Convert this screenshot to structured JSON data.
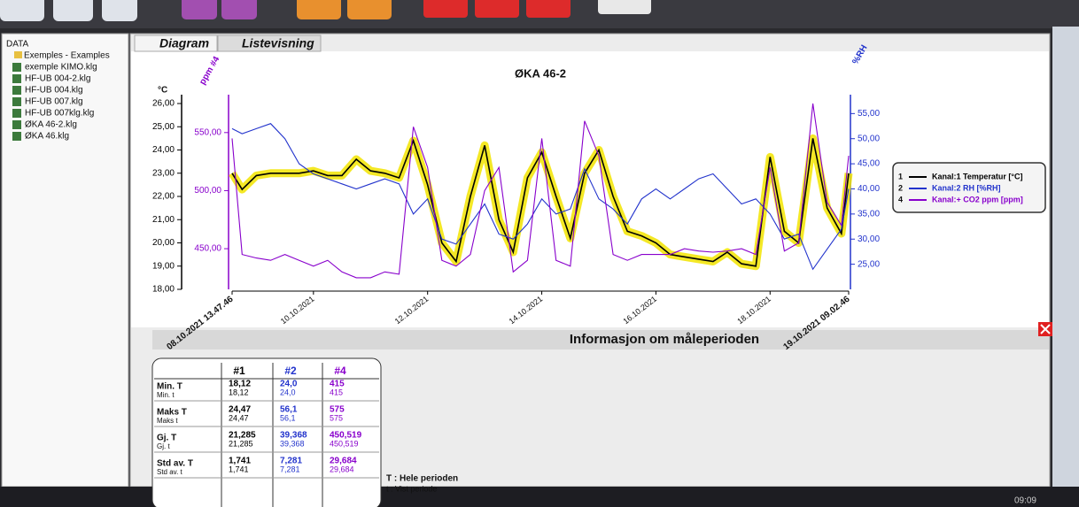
{
  "tree": {
    "root": "DATA",
    "folder": "Exemples - Examples",
    "files": [
      "exemple KIMO.klg",
      "HF-UB 004-2.klg",
      "HF-UB 004.klg",
      "HF-UB 007.klg",
      "HF-UB 007klg.klg",
      "ØKA 46-2.klg",
      "ØKA 46.klg"
    ]
  },
  "tabs": [
    "Diagram",
    "Listevisning"
  ],
  "chart_data": {
    "type": "line",
    "title": "ØKA 46-2",
    "ylabel": "°C",
    "y3label": "ppm #4",
    "y2label": "%RH",
    "xlim": [
      "2021-10-08 13:47:46",
      "2021-10-19 09:02:46"
    ],
    "xticks": [
      {
        "value": "2021-10-08 13:47:46",
        "label": "08.10.2021 13.47.46"
      },
      {
        "value": "2021-10-10 00:00:00",
        "label": "10.10.2021"
      },
      {
        "value": "2021-10-12 00:00:00",
        "label": "12.10.2021"
      },
      {
        "value": "2021-10-14 00:00:00",
        "label": "14.10.2021"
      },
      {
        "value": "2021-10-16 00:00:00",
        "label": "16.10.2021"
      },
      {
        "value": "2021-10-18 00:00:00",
        "label": "18.10.2021"
      },
      {
        "value": "2021-10-19 09:02:46",
        "label": "19.10.2021 09.02.46"
      }
    ],
    "ylim": [
      18,
      26
    ],
    "yticks": [
      {
        "value": 18,
        "label": "18,00"
      },
      {
        "value": 19,
        "label": "19,00"
      },
      {
        "value": 20,
        "label": "20,00"
      },
      {
        "value": 21,
        "label": "21,00"
      },
      {
        "value": 22,
        "label": "22,00"
      },
      {
        "value": 23,
        "label": "23,00"
      },
      {
        "value": 24,
        "label": "24,00"
      },
      {
        "value": 25,
        "label": "25,00"
      },
      {
        "value": 26,
        "label": "26,00"
      }
    ],
    "y2lim": [
      20,
      57
    ],
    "y2ticks": [
      {
        "value": 25,
        "label": "25,00"
      },
      {
        "value": 30,
        "label": "30,00"
      },
      {
        "value": 35,
        "label": "35,00"
      },
      {
        "value": 40,
        "label": "40,00"
      },
      {
        "value": 45,
        "label": "45,00"
      },
      {
        "value": 50,
        "label": "50,00"
      },
      {
        "value": 55,
        "label": "55,00"
      }
    ],
    "y3lim": [
      415,
      575
    ],
    "y3ticks": [
      {
        "value": 450,
        "label": "450,00"
      },
      {
        "value": 500,
        "label": "500,00"
      },
      {
        "value": 550,
        "label": "550,00"
      }
    ],
    "x": [
      "2021-10-08 13:47:46",
      "2021-10-08 18:00:00",
      "2021-10-09 00:00:00",
      "2021-10-09 06:00:00",
      "2021-10-09 12:00:00",
      "2021-10-09 18:00:00",
      "2021-10-10 00:00:00",
      "2021-10-10 06:00:00",
      "2021-10-10 12:00:00",
      "2021-10-10 18:00:00",
      "2021-10-11 00:00:00",
      "2021-10-11 06:00:00",
      "2021-10-11 12:00:00",
      "2021-10-11 18:00:00",
      "2021-10-12 00:00:00",
      "2021-10-12 06:00:00",
      "2021-10-12 12:00:00",
      "2021-10-12 18:00:00",
      "2021-10-13 00:00:00",
      "2021-10-13 06:00:00",
      "2021-10-13 12:00:00",
      "2021-10-13 18:00:00",
      "2021-10-14 00:00:00",
      "2021-10-14 06:00:00",
      "2021-10-14 12:00:00",
      "2021-10-14 18:00:00",
      "2021-10-15 00:00:00",
      "2021-10-15 06:00:00",
      "2021-10-15 12:00:00",
      "2021-10-15 18:00:00",
      "2021-10-16 00:00:00",
      "2021-10-16 06:00:00",
      "2021-10-16 12:00:00",
      "2021-10-16 18:00:00",
      "2021-10-17 00:00:00",
      "2021-10-17 06:00:00",
      "2021-10-17 12:00:00",
      "2021-10-17 18:00:00",
      "2021-10-18 00:00:00",
      "2021-10-18 06:00:00",
      "2021-10-18 12:00:00",
      "2021-10-18 18:00:00",
      "2021-10-19 00:00:00",
      "2021-10-19 06:00:00",
      "2021-10-19 09:02:46"
    ],
    "series": [
      {
        "id": "1",
        "name": "Kanal:1 Temperatur [°C]",
        "color": "#000000",
        "highlight": "#f2e400",
        "axis": "y",
        "values": [
          23.0,
          22.3,
          22.9,
          23.0,
          23.0,
          23.0,
          23.1,
          22.9,
          22.9,
          23.6,
          23.1,
          23.0,
          22.8,
          24.4,
          22.5,
          20.0,
          19.2,
          22.0,
          24.2,
          21.0,
          19.6,
          22.8,
          23.9,
          22.0,
          20.2,
          23.0,
          24.0,
          22.0,
          20.5,
          20.3,
          20.0,
          19.5,
          19.4,
          19.3,
          19.2,
          19.6,
          19.1,
          19.0,
          23.7,
          20.5,
          20.0,
          24.5,
          21.5,
          20.4,
          23.0
        ]
      },
      {
        "id": "2",
        "name": "Kanal:2 RH [%RH]",
        "color": "#2233cc",
        "axis": "y2",
        "values": [
          52,
          51,
          52,
          53,
          50,
          45,
          43,
          42,
          41,
          40,
          41,
          42,
          41,
          35,
          38,
          30,
          29,
          33,
          37,
          31,
          30,
          33,
          38,
          35,
          36,
          44,
          38,
          36,
          33,
          38,
          40,
          38,
          40,
          42,
          43,
          40,
          37,
          38,
          35,
          30,
          31,
          24,
          28,
          32,
          40
        ]
      },
      {
        "id": "4",
        "name": "Kanal:+ CO2 ppm [ppm]",
        "color": "#8800cc",
        "axis": "y3",
        "values": [
          545,
          445,
          442,
          440,
          445,
          440,
          435,
          440,
          430,
          425,
          425,
          430,
          428,
          555,
          520,
          440,
          435,
          445,
          500,
          520,
          430,
          440,
          545,
          440,
          435,
          560,
          530,
          445,
          440,
          445,
          445,
          445,
          450,
          448,
          447,
          448,
          450,
          445,
          520,
          448,
          455,
          575,
          490,
          470,
          530
        ]
      }
    ]
  },
  "info": {
    "title": "Informasjon om måleperioden",
    "columns": [
      "#1",
      "#2",
      "#4"
    ],
    "rows": [
      {
        "label": "Min. T",
        "sublabel": "Min. t",
        "values": [
          "18,12",
          "24,0",
          "415"
        ],
        "subvalues": [
          "18,12",
          "24,0",
          "415"
        ]
      },
      {
        "label": "Maks T",
        "sublabel": "Maks t",
        "values": [
          "24,47",
          "56,1",
          "575"
        ],
        "subvalues": [
          "24,47",
          "56,1",
          "575"
        ]
      },
      {
        "label": "Gj. T",
        "sublabel": "Gj. t",
        "values": [
          "21,285",
          "39,368",
          "450,519"
        ],
        "subvalues": [
          "21,285",
          "39,368",
          "450,519"
        ]
      },
      {
        "label": "Std av. T",
        "sublabel": "Std av. t",
        "values": [
          "1,741",
          "7,281",
          "29,684"
        ],
        "subvalues": [
          "1,741",
          "7,281",
          "29,684"
        ]
      }
    ],
    "notes": [
      "T : Hele perioden",
      "t : Vist periode"
    ]
  },
  "clock": "09:09"
}
